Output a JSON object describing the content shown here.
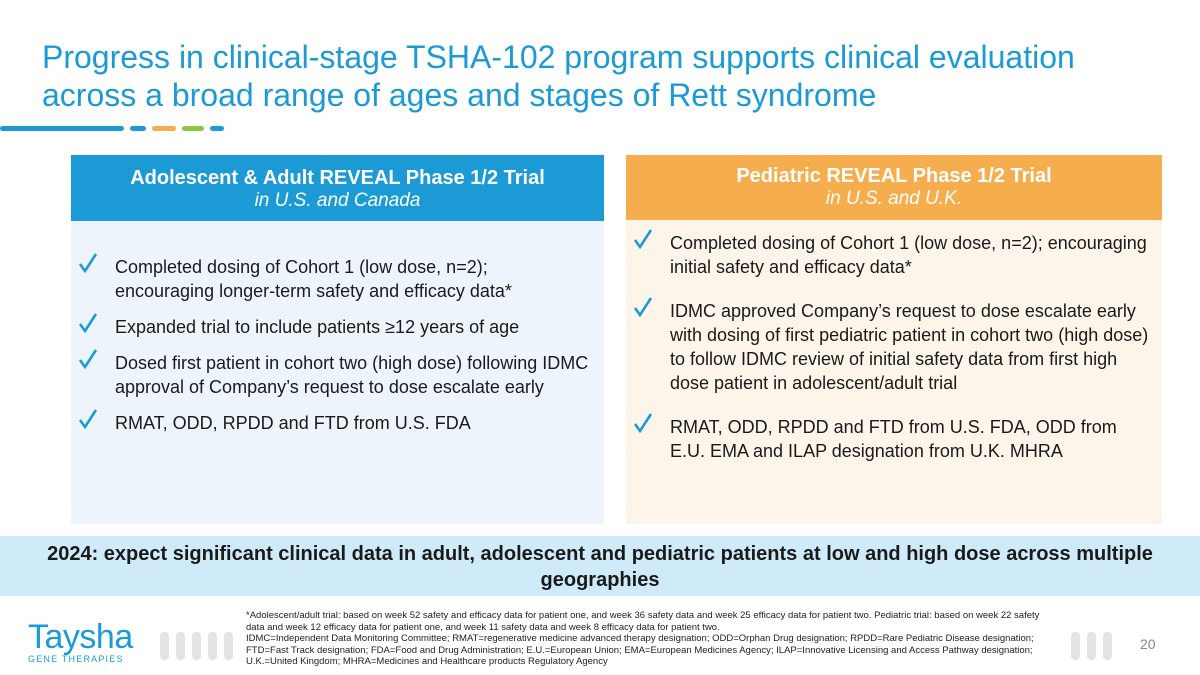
{
  "slide": {
    "title": "Progress in clinical-stage TSHA-102 program supports clinical evaluation across a broad range of ages and stages of Rett syndrome",
    "page_number": "20"
  },
  "colors": {
    "blue": "#1b9ad6",
    "orange": "#f6ad4d",
    "left_body_bg": "#eef4fb",
    "right_body_bg": "#fdf4ea",
    "banner_bg": "#cfeaf9",
    "accent_blue": "#1b9ad6",
    "accent_orange": "#f6ad4d",
    "accent_green": "#8dc63f"
  },
  "left_panel": {
    "heading": "Adolescent & Adult REVEAL Phase 1/2 Trial",
    "subheading": "in U.S. and Canada",
    "items": [
      "Completed dosing of Cohort 1 (low dose, n=2); encouraging longer-term safety and efficacy data*",
      "Expanded trial to include patients ≥12 years of age",
      "Dosed first patient in cohort two (high dose) following IDMC approval of Company’s request to dose escalate early",
      "RMAT, ODD, RPDD and FTD from U.S. FDA"
    ]
  },
  "right_panel": {
    "heading": "Pediatric REVEAL Phase 1/2 Trial",
    "subheading": "in U.S. and U.K.",
    "items": [
      "Completed dosing of Cohort 1 (low dose, n=2); encouraging initial safety and efficacy data*",
      "IDMC approved Company’s request to dose escalate early with dosing of first pediatric patient in cohort two (high dose) to follow IDMC review of initial safety data from first high dose patient in adolescent/adult trial",
      "RMAT, ODD, RPDD and FTD from U.S. FDA, ODD from E.U. EMA and ILAP designation from U.K. MHRA"
    ]
  },
  "banner": {
    "text": "2024: expect significant clinical data in adult, adolescent and pediatric patients at low and high dose across multiple geographies"
  },
  "footnote": {
    "lines": [
      "*Adolescent/adult trial: based on week 52 safety and efficacy data for patient one, and week 36 safety data and week 25 efficacy data for patient two. Pediatric trial: based on week 22 safety data and week 12 efficacy data for patient one, and week 11 safety data and week 8 efficacy data for patient two.",
      "IDMC=Independent Data Monitoring Committee; RMAT=regenerative medicine advanced therapy designation; ODD=Orphan Drug designation; RPDD=Rare Pediatric Disease designation; FTD=Fast Track designation; FDA=Food and Drug Administration; E.U.=European Union; EMA=European Medicines Agency; ILAP=Innovative Licensing and Access Pathway designation; U.K.=United Kingdom; MHRA=Medicines and Healthcare products Regulatory Agency"
    ]
  },
  "logo": {
    "name": "Taysha",
    "tagline": "GENE THERAPIES"
  }
}
